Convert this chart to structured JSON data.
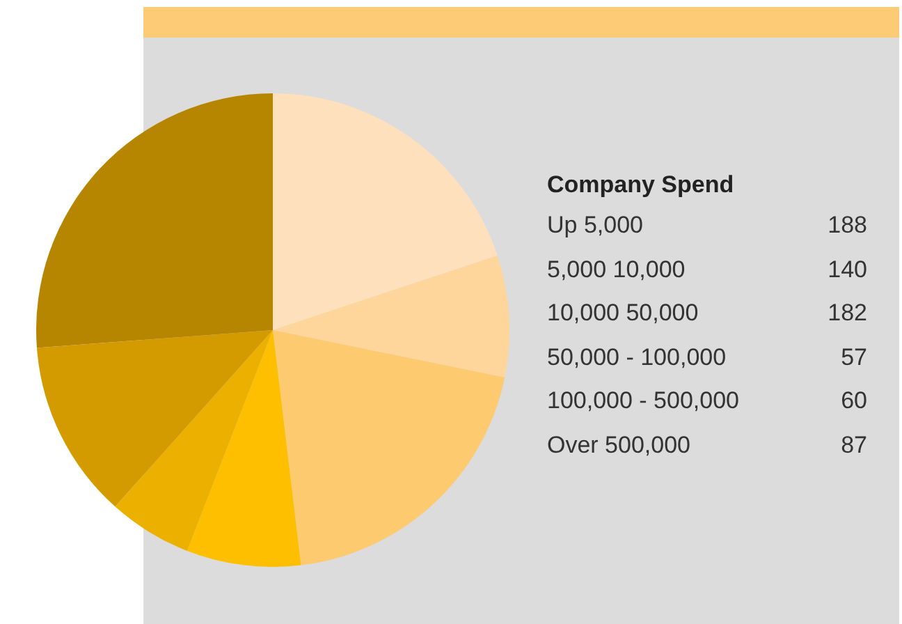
{
  "chart_data": [
    {
      "type": "pie",
      "categories": [
        null,
        null,
        null,
        null,
        null,
        null,
        null
      ],
      "values": [
        19.9,
        8.3,
        19.9,
        7.8,
        5.7,
        12.2,
        26.2
      ],
      "colors": [
        "#fee0bc",
        "#fed59b",
        "#fdca70",
        "#fdbf00",
        "#ebb000",
        "#d49b00",
        "#b78600"
      ],
      "legend": false
    },
    {
      "type": "other",
      "title": "Company Spend",
      "categories": [
        "Up 5,000",
        "5,000 10,000",
        "10,000 50,000",
        "50,000 - 100,000",
        "100,000 - 500,000",
        "Over 500,000"
      ],
      "values": [
        188,
        140,
        182,
        57,
        60,
        87
      ],
      "data_labels": true
    }
  ]
}
